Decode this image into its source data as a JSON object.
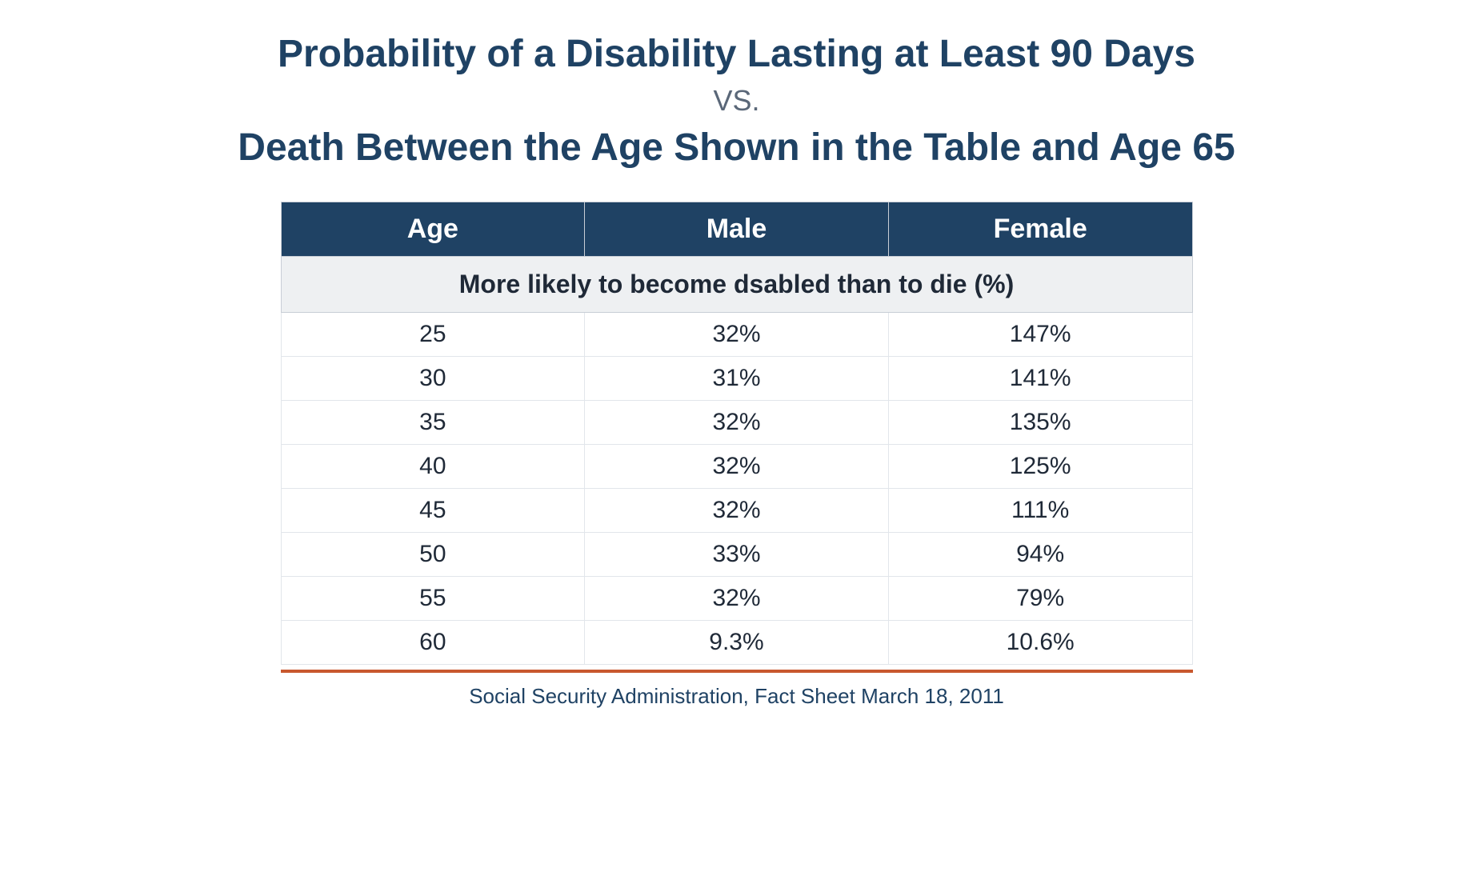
{
  "title": {
    "line1": "Probability of a Disability Lasting at Least 90 Days",
    "vs": "VS.",
    "line2": "Death Between the Age Shown in the Table and Age 65"
  },
  "table": {
    "columns": [
      "Age",
      "Male",
      "Female"
    ],
    "subheader": "More likely to become dsabled than to die (%)",
    "rows": [
      [
        "25",
        "32%",
        "147%"
      ],
      [
        "30",
        "31%",
        "141%"
      ],
      [
        "35",
        "32%",
        "135%"
      ],
      [
        "40",
        "32%",
        "125%"
      ],
      [
        "45",
        "32%",
        "111%"
      ],
      [
        "50",
        "33%",
        "94%"
      ],
      [
        "55",
        "32%",
        "79%"
      ],
      [
        "60",
        "9.3%",
        "10.6%"
      ]
    ],
    "header_bg": "#1f4264",
    "header_text_color": "#ffffff",
    "subheader_bg": "#eef0f2",
    "cell_bg": "#ffffff",
    "border_color": "#c8ced6",
    "cell_border_color": "#e2e6eb",
    "text_color": "#1f2937",
    "header_fontsize": 34,
    "subheader_fontsize": 32,
    "cell_fontsize": 30,
    "col_widths": [
      "33.33%",
      "33.33%",
      "33.33%"
    ]
  },
  "bottom_rule_color": "#c8582e",
  "source": "Social Security Administration, Fact Sheet March 18, 2011",
  "title_color": "#1f4264",
  "vs_color": "#5a6778",
  "source_color": "#1f4264",
  "background_color": "#ffffff"
}
